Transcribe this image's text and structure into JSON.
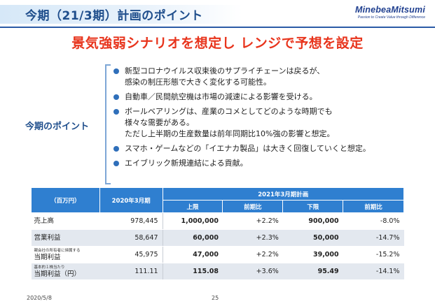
{
  "header": {
    "title": "今期（21/3期）計画のポイント",
    "logo_main": "MinebeaMitsumi",
    "logo_sub": "Passion to Create Value through Difference"
  },
  "headline": "景気強弱シナリオを想定し レンジで予想を設定",
  "points": {
    "label": "今期のポイント",
    "items": [
      {
        "lines": [
          "新型コロナウイルス収束後のサプライチェーンは戻るが、",
          "感染の制圧形態で大きく変化する可能性。"
        ]
      },
      {
        "lines": [
          "自動車／民間航空機は市場の減速による影響を受ける。"
        ]
      },
      {
        "lines": [
          "ボールベアリングは、産業のコメとしてどのような時期でも",
          "様々な需要がある。",
          "ただし上半期の生産数量は前年同期比10%強の影響と想定。"
        ]
      },
      {
        "lines": [
          "スマホ・ゲームなどの「イエナカ製品」は大きく回復していくと想定。"
        ]
      },
      {
        "lines": [
          "エイブリック新規連結による貢献。"
        ]
      }
    ]
  },
  "table": {
    "unit": "（百万円）",
    "col_prev": "2020年3月期",
    "col_plan": "2021年3月期計画",
    "sub_upper": "上限",
    "sub_upper_yoy": "前期比",
    "sub_lower": "下限",
    "sub_lower_yoy": "前期比",
    "rows": [
      {
        "note": "",
        "label": "売上高",
        "prev": "978,445",
        "upper": "1,000,000",
        "upper_yoy": "+2.2%",
        "lower": "900,000",
        "lower_yoy": "-8.0%"
      },
      {
        "note": "",
        "label": "営業利益",
        "prev": "58,647",
        "upper": "60,000",
        "upper_yoy": "+2.3%",
        "lower": "50,000",
        "lower_yoy": "-14.7%"
      },
      {
        "note": "親会社の所有者に帰属する",
        "label": "当期利益",
        "prev": "45,975",
        "upper": "47,000",
        "upper_yoy": "+2.2%",
        "lower": "39,000",
        "lower_yoy": "-15.2%"
      },
      {
        "note": "基本的１株当たり",
        "label": "当期利益（円）",
        "prev": "111.11",
        "upper": "115.08",
        "upper_yoy": "+3.6%",
        "lower": "95.49",
        "lower_yoy": "-14.1%"
      }
    ]
  },
  "footer": {
    "date": "2020/5/8",
    "page": "25"
  }
}
